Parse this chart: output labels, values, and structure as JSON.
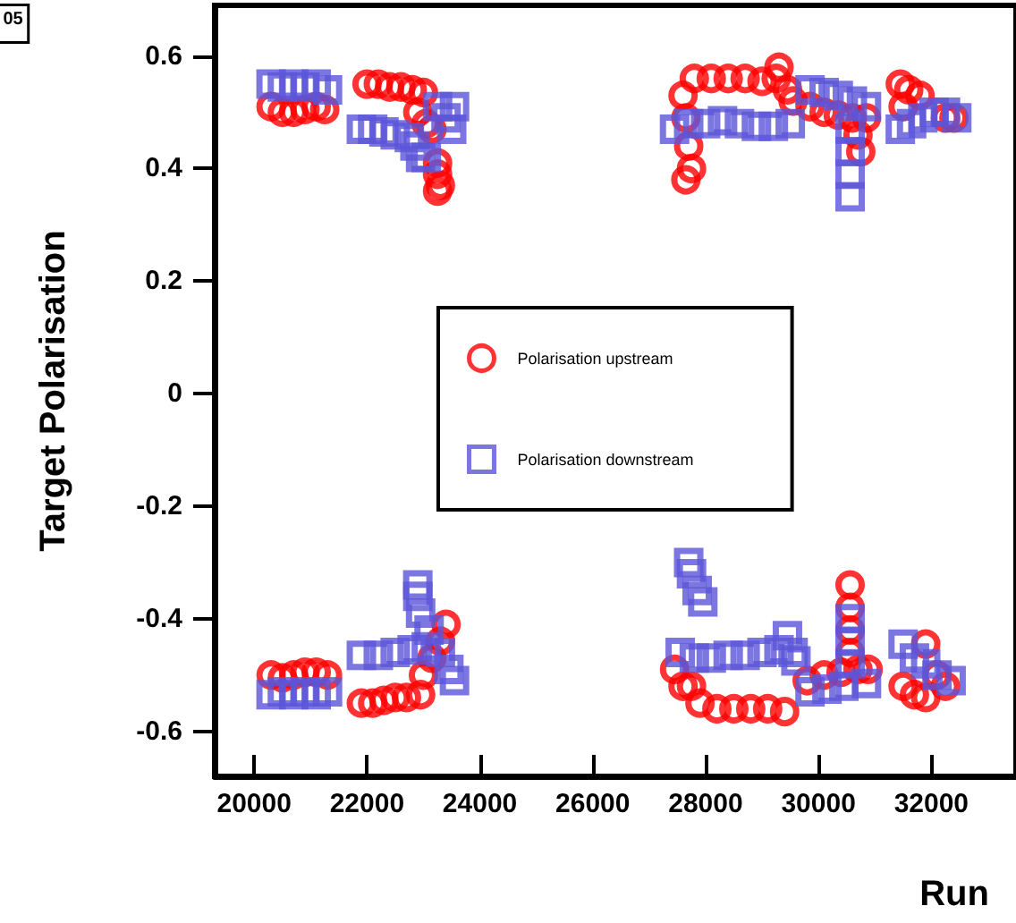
{
  "chart_data": {
    "type": "scatter",
    "xlabel": "Run",
    "ylabel": "Target Polarisation",
    "annotations": [
      "05"
    ],
    "xlim": [
      19300,
      33500
    ],
    "xticks": [
      20000,
      22000,
      24000,
      26000,
      28000,
      30000,
      32000
    ],
    "ylim": [
      -0.68,
      0.69
    ],
    "yticks": [
      -0.6,
      -0.4,
      -0.2,
      0,
      0.2,
      0.4,
      0.6
    ],
    "grid": false,
    "legend": "center",
    "series": [
      {
        "name": "Polarisation upstream",
        "color": "#ff0000",
        "marker": "circle",
        "x": [
          20300,
          20500,
          20700,
          20900,
          21100,
          21250,
          22000,
          22200,
          22400,
          22600,
          22800,
          23000,
          22900,
          23050,
          23150,
          23250,
          23250,
          23300,
          23250,
          27600,
          27650,
          27700,
          27750,
          27650,
          27800,
          28100,
          28400,
          28700,
          29000,
          29250,
          29300,
          29450,
          29550,
          29850,
          30100,
          30350,
          30600,
          30850,
          30700,
          30750,
          31450,
          31600,
          31800,
          31500,
          32250,
          32400,
          20300,
          20500,
          20700,
          20900,
          21100,
          21300,
          21900,
          22100,
          22300,
          22500,
          22700,
          22950,
          23000,
          23150,
          23300,
          23400,
          27450,
          27600,
          27750,
          27900,
          28200,
          28500,
          28800,
          29100,
          29400,
          29800,
          30100,
          30400,
          30700,
          30880,
          30560,
          30560,
          30560,
          30560,
          31500,
          31700,
          31900,
          31900,
          32100,
          32250
        ],
        "values": [
          0.51,
          0.5,
          0.5,
          0.505,
          0.51,
          0.505,
          0.55,
          0.55,
          0.545,
          0.545,
          0.54,
          0.535,
          0.5,
          0.48,
          0.47,
          0.41,
          0.39,
          0.37,
          0.36,
          0.53,
          0.49,
          0.44,
          0.4,
          0.38,
          0.56,
          0.56,
          0.56,
          0.56,
          0.555,
          0.56,
          0.58,
          0.54,
          0.52,
          0.51,
          0.5,
          0.495,
          0.49,
          0.49,
          0.46,
          0.43,
          0.55,
          0.54,
          0.53,
          0.51,
          0.49,
          0.49,
          -0.5,
          -0.505,
          -0.5,
          -0.495,
          -0.495,
          -0.5,
          -0.55,
          -0.55,
          -0.545,
          -0.54,
          -0.54,
          -0.535,
          -0.5,
          -0.47,
          -0.44,
          -0.41,
          -0.49,
          -0.52,
          -0.52,
          -0.55,
          -0.56,
          -0.56,
          -0.56,
          -0.56,
          -0.565,
          -0.51,
          -0.5,
          -0.495,
          -0.49,
          -0.49,
          -0.34,
          -0.38,
          -0.42,
          -0.46,
          -0.52,
          -0.535,
          -0.54,
          -0.445,
          -0.5,
          -0.52
        ]
      },
      {
        "name": "Polarisation downstream",
        "color": "#5b55d8",
        "marker": "square",
        "x": [
          20300,
          20500,
          20700,
          20900,
          21100,
          21300,
          21900,
          22100,
          22300,
          22500,
          22750,
          22850,
          22950,
          23050,
          23250,
          23400,
          23500,
          23550,
          27450,
          27700,
          28000,
          28300,
          28600,
          28900,
          29200,
          29500,
          29850,
          30100,
          30350,
          30600,
          30850,
          30560,
          30560,
          30560,
          30560,
          31450,
          31650,
          31850,
          32050,
          32250,
          32450,
          20300,
          20500,
          20700,
          20900,
          21100,
          21300,
          21900,
          22200,
          22500,
          22800,
          23050,
          22900,
          22900,
          22950,
          23100,
          23300,
          23450,
          23550,
          27700,
          27750,
          27850,
          27950,
          27550,
          27800,
          28100,
          28400,
          28700,
          29000,
          29300,
          29450,
          29550,
          29600,
          29850,
          30150,
          30450,
          30850,
          30560,
          30560,
          30560,
          31500,
          31700,
          31900,
          32100,
          32350
        ],
        "values": [
          0.55,
          0.545,
          0.55,
          0.545,
          0.55,
          0.54,
          0.47,
          0.47,
          0.465,
          0.46,
          0.455,
          0.44,
          0.42,
          0.42,
          0.51,
          0.49,
          0.47,
          0.51,
          0.47,
          0.48,
          0.48,
          0.485,
          0.48,
          0.475,
          0.475,
          0.48,
          0.54,
          0.535,
          0.53,
          0.52,
          0.51,
          0.47,
          0.43,
          0.39,
          0.35,
          0.47,
          0.48,
          0.49,
          0.5,
          0.5,
          0.49,
          -0.535,
          -0.53,
          -0.535,
          -0.53,
          -0.535,
          -0.53,
          -0.465,
          -0.465,
          -0.46,
          -0.455,
          -0.45,
          -0.34,
          -0.36,
          -0.39,
          -0.42,
          -0.46,
          -0.49,
          -0.51,
          -0.3,
          -0.32,
          -0.35,
          -0.37,
          -0.46,
          -0.47,
          -0.47,
          -0.465,
          -0.465,
          -0.46,
          -0.455,
          -0.43,
          -0.46,
          -0.475,
          -0.53,
          -0.525,
          -0.52,
          -0.515,
          -0.4,
          -0.44,
          -0.48,
          -0.445,
          -0.47,
          -0.48,
          -0.5,
          -0.51
        ]
      }
    ]
  }
}
